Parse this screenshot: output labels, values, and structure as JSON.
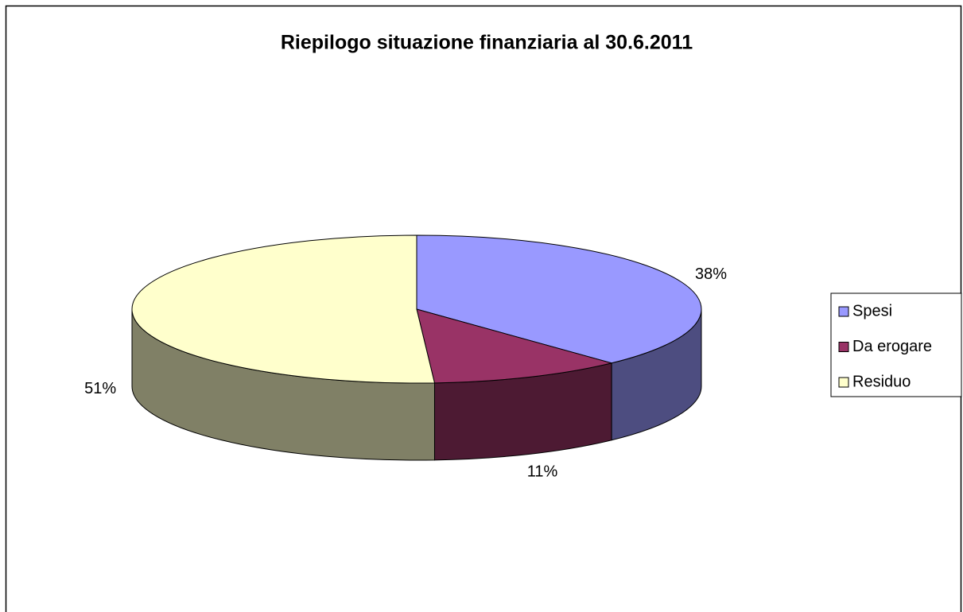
{
  "chart_data": {
    "type": "pie3d",
    "title": "Riepilogo situazione finanziaria al 30.6.2011",
    "categories": [
      "Spesi",
      "Da erogare",
      "Residuo"
    ],
    "values": [
      38,
      11,
      51
    ],
    "value_labels": [
      "38%",
      "11%",
      "51%"
    ],
    "colors": [
      "#9999ff",
      "#993366",
      "#ffffcc"
    ],
    "legend": "right"
  }
}
